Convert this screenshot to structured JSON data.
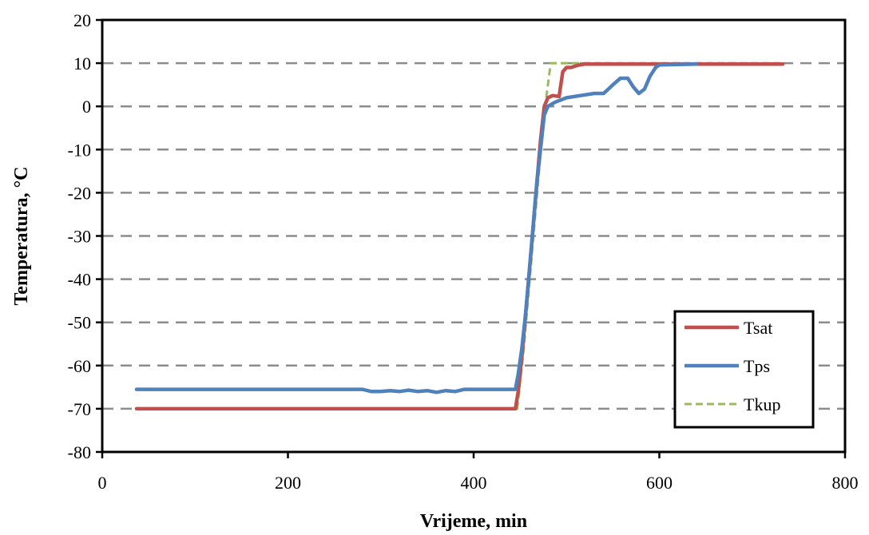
{
  "chart_data": {
    "type": "line",
    "title": "",
    "xlabel": "Vrijeme, min",
    "ylabel": "Temperatura, °C",
    "xlim": [
      0,
      800
    ],
    "ylim": [
      -80,
      20
    ],
    "x_ticks": [
      0,
      200,
      400,
      600,
      800
    ],
    "y_ticks": [
      -80,
      -70,
      -60,
      -50,
      -40,
      -30,
      -20,
      -10,
      0,
      10,
      20
    ],
    "grid": "horizontal-dashed",
    "legend_position": "bottom-right",
    "series": [
      {
        "name": "Tsat",
        "color": "#c0504d",
        "dash": "solid",
        "points": [
          [
            37,
            -70
          ],
          [
            100,
            -70
          ],
          [
            200,
            -70
          ],
          [
            300,
            -70
          ],
          [
            400,
            -70
          ],
          [
            445,
            -70
          ],
          [
            448,
            -66
          ],
          [
            452,
            -58
          ],
          [
            456,
            -48
          ],
          [
            460,
            -38
          ],
          [
            464,
            -28
          ],
          [
            468,
            -18
          ],
          [
            472,
            -8
          ],
          [
            476,
            0
          ],
          [
            480,
            2
          ],
          [
            485,
            2.5
          ],
          [
            492,
            2.3
          ],
          [
            496,
            8
          ],
          [
            500,
            9
          ],
          [
            505,
            9
          ],
          [
            512,
            9.5
          ],
          [
            520,
            9.8
          ],
          [
            560,
            9.8
          ],
          [
            600,
            9.8
          ],
          [
            650,
            9.8
          ],
          [
            700,
            9.8
          ],
          [
            733,
            9.8
          ]
        ]
      },
      {
        "name": "Tps",
        "color": "#4f81bd",
        "dash": "solid",
        "points": [
          [
            37,
            -65.5
          ],
          [
            100,
            -65.5
          ],
          [
            200,
            -65.5
          ],
          [
            280,
            -65.5
          ],
          [
            290,
            -66
          ],
          [
            300,
            -66
          ],
          [
            310,
            -65.8
          ],
          [
            320,
            -66
          ],
          [
            330,
            -65.7
          ],
          [
            340,
            -66
          ],
          [
            350,
            -65.8
          ],
          [
            360,
            -66.2
          ],
          [
            370,
            -65.8
          ],
          [
            380,
            -66
          ],
          [
            390,
            -65.5
          ],
          [
            400,
            -65.5
          ],
          [
            440,
            -65.5
          ],
          [
            445,
            -65.5
          ],
          [
            448,
            -62
          ],
          [
            452,
            -56
          ],
          [
            456,
            -48
          ],
          [
            460,
            -38
          ],
          [
            464,
            -28
          ],
          [
            468,
            -18
          ],
          [
            472,
            -10
          ],
          [
            476,
            -2
          ],
          [
            480,
            0
          ],
          [
            488,
            1
          ],
          [
            500,
            2
          ],
          [
            515,
            2.5
          ],
          [
            530,
            3
          ],
          [
            540,
            3
          ],
          [
            545,
            4
          ],
          [
            550,
            5
          ],
          [
            558,
            6.5
          ],
          [
            566,
            6.5
          ],
          [
            572,
            4.5
          ],
          [
            578,
            3
          ],
          [
            584,
            4
          ],
          [
            590,
            7
          ],
          [
            596,
            9
          ],
          [
            600,
            9.6
          ],
          [
            640,
            9.8
          ]
        ]
      },
      {
        "name": "Tkup",
        "color": "#9bbb59",
        "dash": "dashed",
        "points": [
          [
            37,
            -70
          ],
          [
            100,
            -70
          ],
          [
            200,
            -70
          ],
          [
            300,
            -70
          ],
          [
            400,
            -70
          ],
          [
            447,
            -70
          ],
          [
            450,
            -64
          ],
          [
            454,
            -56
          ],
          [
            458,
            -46
          ],
          [
            462,
            -36
          ],
          [
            466,
            -26
          ],
          [
            470,
            -16
          ],
          [
            474,
            -6
          ],
          [
            477,
            0
          ],
          [
            480,
            5
          ],
          [
            483,
            10
          ],
          [
            500,
            10
          ],
          [
            560,
            10
          ],
          [
            600,
            10
          ],
          [
            650,
            10
          ],
          [
            700,
            10
          ],
          [
            733,
            10
          ]
        ]
      }
    ]
  }
}
